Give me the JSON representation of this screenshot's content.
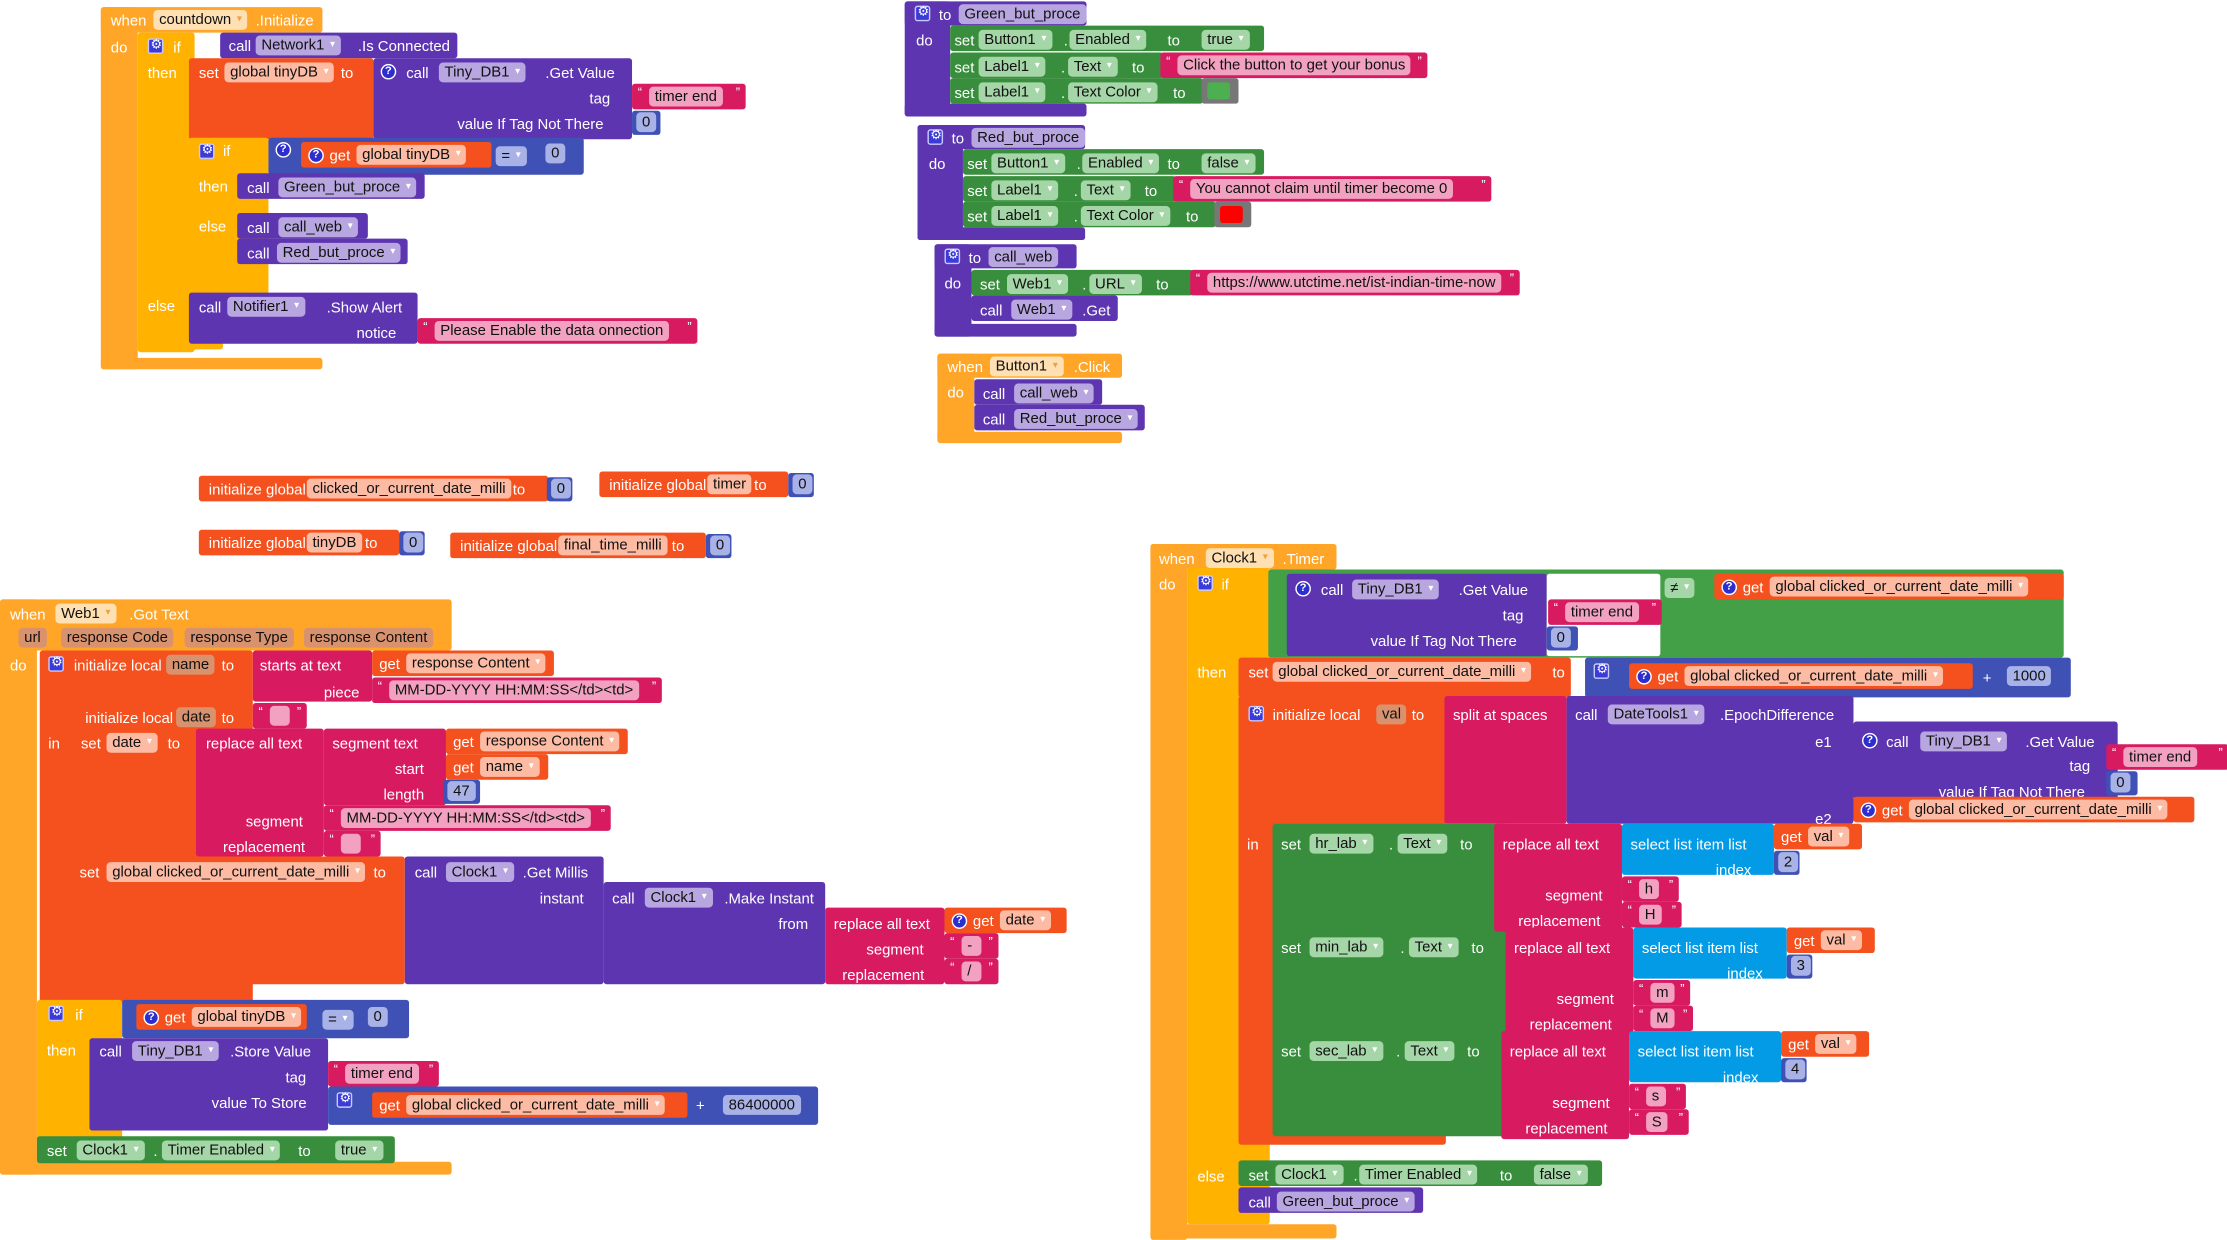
{
  "kw": {
    "when": "when",
    "do": "do",
    "if": "if",
    "then": "then",
    "else": "else",
    "call": "call",
    "set": "set",
    "to": "to",
    "get": "get",
    "in": "in",
    "dot": ".",
    "plus": "+",
    "init_local": "initialize local",
    "init_global": "initialize global",
    "tag": "tag",
    "value_if_not": "value If Tag Not There",
    "replace_all": "replace all text",
    "segment": "segment",
    "replacement": "replacement",
    "select_list": "select list item  list",
    "index": "index"
  },
  "colors": {
    "event": "#FFA629",
    "control": "#FFB300",
    "variable": "#F4511E",
    "procedure": "#5E35B1",
    "text": "#D81B60",
    "math": "#3F51B5",
    "setter": "#388E3C",
    "logic": "#43A047",
    "list": "#039BE5"
  },
  "countdown": {
    "component": "countdown",
    "event": ".Initialize",
    "network": "Network1",
    "is_connected": ".Is Connected",
    "var": "global tinyDB",
    "db": "Tiny_DB1",
    "get_value": ".Get Value",
    "tag": "timer end",
    "default": "0",
    "cmp_op": "=",
    "cmp_value": "0",
    "then_call": "Green_but_proce",
    "else_call1": "call_web",
    "else_call2": "Red_but_proce",
    "notifier": "Notifier1",
    "show_alert": ".Show Alert",
    "notice": "notice",
    "notice_text": "Please Enable the data onnection"
  },
  "green_proc": {
    "name": "Green_but_proce",
    "button": "Button1",
    "enabled": "Enabled",
    "enabled_value": "true",
    "label": "Label1",
    "text_prop": "Text",
    "text_value": "Click the button to get your bonus",
    "color_prop": "Text Color",
    "color": "#4CAF50"
  },
  "red_proc": {
    "name": "Red_but_proce",
    "button": "Button1",
    "enabled": "Enabled",
    "enabled_value": "false",
    "label": "Label1",
    "text_prop": "Text",
    "text_value": "You cannot claim until timer become 0",
    "color_prop": "Text Color",
    "color": "#FF0000"
  },
  "call_web_proc": {
    "name": "call_web",
    "web": "Web1",
    "url_prop": "URL",
    "url": "https://www.utctime.net/ist-indian-time-now",
    "get": ".Get"
  },
  "button_click": {
    "component": "Button1",
    "event": ".Click",
    "call1": "call_web",
    "call2": "Red_but_proce"
  },
  "globals": [
    {
      "name": "clicked_or_current_date_milli",
      "value": "0"
    },
    {
      "name": "timer",
      "value": "0"
    },
    {
      "name": "tinyDB",
      "value": "0"
    },
    {
      "name": "final_time_milli",
      "value": "0"
    }
  ],
  "web_got_text": {
    "component": "Web1",
    "event": ".Got Text",
    "params": [
      "url",
      "response Code",
      "response Type",
      "response Content"
    ],
    "local1": "name",
    "starts_at": "starts at  text",
    "piece": "piece",
    "get1": "response Content",
    "piece_text": "MM-DD-YYYY HH:MM:SS</td><td>",
    "local2": "date",
    "date_init": "",
    "set_var": "date",
    "segment_text": "segment  text",
    "start": "start",
    "length": "length",
    "get_name": "name",
    "length_value": "47",
    "segment_value": "MM-DD-YYYY HH:MM:SS</td><td>",
    "replacement_value": "",
    "global_var": "global clicked_or_current_date_milli",
    "clock": "Clock1",
    "get_millis": ".Get Millis",
    "instant": "instant",
    "make_instant": ".Make Instant",
    "from": "from",
    "get_date": "date",
    "seg2": "-",
    "rep2": "/",
    "cmp_var": "global tinyDB",
    "cmp_op": "=",
    "cmp_value": "0",
    "db": "Tiny_DB1",
    "store_value": ".Store Value",
    "value_to_store": "value To Store",
    "tag": "timer end",
    "add_value": "86400000",
    "timer_prop": "Timer Enabled",
    "timer_value": "true"
  },
  "clock_timer": {
    "component": "Clock1",
    "event": ".Timer",
    "db": "Tiny_DB1",
    "get_value": ".Get Value",
    "tag": "timer end",
    "default": "0",
    "cmp_op": "≠",
    "global_var": "global clicked_or_current_date_milli",
    "add_value": "1000",
    "local": "val",
    "split": "split at spaces",
    "datetools": "DateTools1",
    "epoch": ".EpochDifference",
    "e1": "e1",
    "e2": "e2",
    "list_var": "val",
    "rows": [
      {
        "label": "hr_lab",
        "prop": "Text",
        "index": "2",
        "segment": "h",
        "replacement": "H"
      },
      {
        "label": "min_lab",
        "prop": "Text",
        "index": "3",
        "segment": "m",
        "replacement": "M"
      },
      {
        "label": "sec_lab",
        "prop": "Text",
        "index": "4",
        "segment": "s",
        "replacement": "S"
      }
    ],
    "timer_prop": "Timer Enabled",
    "timer_value": "false",
    "else_call": "Green_but_proce"
  }
}
